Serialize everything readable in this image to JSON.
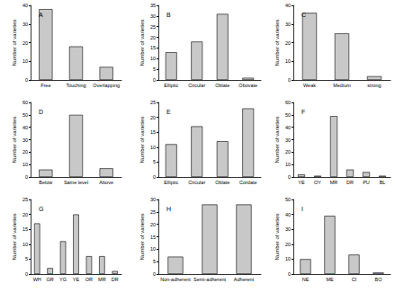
{
  "chart_data": [
    {
      "type": "bar",
      "title": "A",
      "ylabel": "Number of varieties",
      "categories": [
        "Free",
        "Touching",
        "Overlapping"
      ],
      "values": [
        38,
        18,
        7
      ],
      "color": "#c8c8c8",
      "ylim": [
        0,
        40
      ],
      "yticks": [
        0,
        10,
        20,
        30,
        40
      ]
    },
    {
      "type": "bar",
      "title": "B",
      "ylabel": "Number of varieties",
      "categories": [
        "Elliptic",
        "Circular",
        "Oblate",
        "Obovate"
      ],
      "values": [
        13,
        18,
        31,
        1
      ],
      "color": "#c8c8c8",
      "ylim": [
        0,
        35
      ],
      "yticks": [
        0,
        5,
        10,
        15,
        20,
        25,
        30,
        35
      ]
    },
    {
      "type": "bar",
      "title": "C",
      "ylabel": "Number of varieties",
      "categories": [
        "Weak",
        "Medium",
        "strong"
      ],
      "values": [
        36,
        25,
        2
      ],
      "color": "#c8c8c8",
      "ylim": [
        0,
        40
      ],
      "yticks": [
        0,
        10,
        20,
        30,
        40
      ]
    },
    {
      "type": "bar",
      "title": "D",
      "ylabel": "Number of varieties",
      "categories": [
        "Below",
        "Same level",
        "Above"
      ],
      "values": [
        6,
        50,
        7
      ],
      "color": "#c8c8c8",
      "ylim": [
        0,
        60
      ],
      "yticks": [
        0,
        10,
        20,
        30,
        40,
        50,
        60
      ]
    },
    {
      "type": "bar",
      "title": "E",
      "ylabel": "Number of varieties",
      "categories": [
        "Elliptic",
        "Circular",
        "Oblate",
        "Cordate"
      ],
      "values": [
        11,
        17,
        12,
        23
      ],
      "color": "#c8c8c8",
      "ylim": [
        0,
        25
      ],
      "yticks": [
        0,
        5,
        10,
        15,
        20,
        25
      ]
    },
    {
      "type": "bar",
      "title": "F",
      "ylabel": "Number of varieties",
      "categories": [
        "YE",
        "OY",
        "MR",
        "DR",
        "PU",
        "BL"
      ],
      "values": [
        2,
        1,
        49,
        6,
        4,
        1
      ],
      "color": "#c8c8c8",
      "ylim": [
        0,
        60
      ],
      "yticks": [
        0,
        10,
        20,
        30,
        40,
        50,
        60
      ]
    },
    {
      "type": "bar",
      "title": "G",
      "ylabel": "Number of varieties",
      "categories": [
        "WH",
        "GR",
        "YG",
        "YE",
        "OR",
        "MR",
        "DR"
      ],
      "values": [
        17,
        2,
        11,
        20,
        6,
        6,
        1
      ],
      "color": "#c8c8c8",
      "ylim": [
        0,
        25
      ],
      "yticks": [
        0,
        5,
        10,
        15,
        20,
        25
      ]
    },
    {
      "type": "bar",
      "title": "H",
      "ylabel": "Number of varieties",
      "categories": [
        "Non-adherent",
        "Semi-adherent",
        "Adherent"
      ],
      "values": [
        7,
        28,
        28
      ],
      "color": "#c8c8c8",
      "ylim": [
        0,
        30
      ],
      "yticks": [
        0,
        5,
        10,
        15,
        20,
        25,
        30
      ]
    },
    {
      "type": "bar",
      "title": "I",
      "ylabel": "Number of varieties",
      "categories": [
        "NE",
        "ME",
        "CI",
        "BO"
      ],
      "values": [
        10,
        39,
        13,
        1
      ],
      "color": "#c8c8c8",
      "ylim": [
        0,
        50
      ],
      "yticks": [
        0,
        10,
        20,
        30,
        40,
        50
      ]
    }
  ]
}
